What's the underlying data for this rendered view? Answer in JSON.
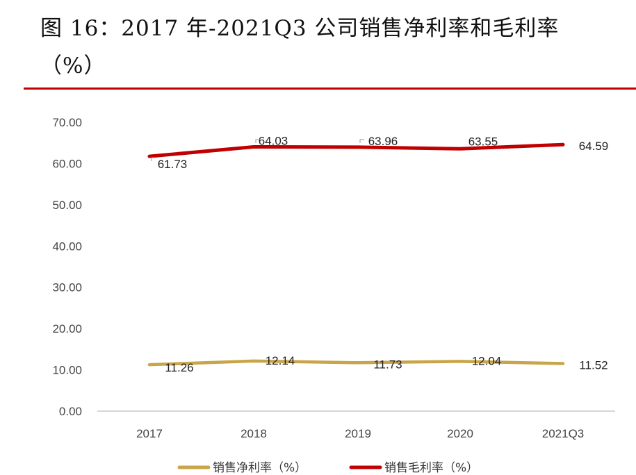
{
  "title": {
    "line1": "图 16：2017 年-2021Q3 公司销售净利率和毛利率",
    "line2": "（%）"
  },
  "colors": {
    "rule": "#c00000",
    "axis": "#bfbfbf"
  },
  "chart_data": {
    "type": "line",
    "categories": [
      "2017",
      "2018",
      "2019",
      "2020",
      "2021Q3"
    ],
    "ylim": [
      0,
      70
    ],
    "yticks": [
      "0.00",
      "10.00",
      "20.00",
      "30.00",
      "40.00",
      "50.00",
      "60.00",
      "70.00"
    ],
    "grid": false,
    "legend_position": "bottom",
    "series": [
      {
        "name": "销售净利率（%）",
        "color": "#c9a54a",
        "values": [
          11.26,
          12.14,
          11.73,
          12.04,
          11.52
        ],
        "labels": [
          "11.26",
          "12.14",
          "11.73",
          "12.04",
          "11.52"
        ]
      },
      {
        "name": "销售毛利率（%）",
        "color": "#c00000",
        "values": [
          61.73,
          64.03,
          63.96,
          63.55,
          64.59
        ],
        "labels": [
          "61.73",
          "64.03",
          "63.96",
          "63.55",
          "64.59"
        ]
      }
    ]
  }
}
